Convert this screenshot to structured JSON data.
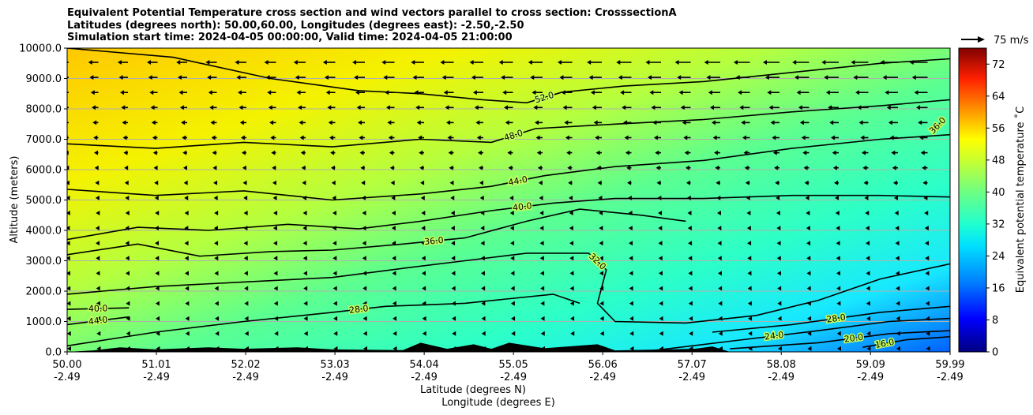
{
  "chart_data": {
    "type": "heatmap",
    "title_lines": [
      "Equivalent Potential Temperature cross section and wind vectors parallel to cross section: CrosssectionA",
      "Latitudes (degrees north): 50.00,60.00, Longitudes (degrees east): -2.50,-2.50",
      "Simulation start time: 2024-04-05 00:00:00, Valid time: 2024-04-05 21:00:00"
    ],
    "ylabel": "Altitude (meters)",
    "xlabel_1": "Latitude (degrees N)",
    "xlabel_2": "Longitude (degrees E)",
    "ylim": [
      0,
      10000
    ],
    "y_ticks": [
      {
        "v": 0,
        "label": "0.0"
      },
      {
        "v": 1000,
        "label": "1000.0"
      },
      {
        "v": 2000,
        "label": "2000.0"
      },
      {
        "v": 3000,
        "label": "3000.0"
      },
      {
        "v": 4000,
        "label": "4000.0"
      },
      {
        "v": 5000,
        "label": "5000.0"
      },
      {
        "v": 6000,
        "label": "6000.0"
      },
      {
        "v": 7000,
        "label": "7000.0"
      },
      {
        "v": 8000,
        "label": "8000.0"
      },
      {
        "v": 9000,
        "label": "9000.0"
      },
      {
        "v": 10000,
        "label": "10000.0"
      }
    ],
    "xlim": [
      50.0,
      59.99
    ],
    "x_ticks": [
      {
        "v": 50.0,
        "lat": "50.00",
        "lon": "-2.49"
      },
      {
        "v": 51.01,
        "lat": "51.01",
        "lon": "-2.49"
      },
      {
        "v": 52.02,
        "lat": "52.02",
        "lon": "-2.49"
      },
      {
        "v": 53.03,
        "lat": "53.03",
        "lon": "-2.49"
      },
      {
        "v": 54.04,
        "lat": "54.04",
        "lon": "-2.49"
      },
      {
        "v": 55.05,
        "lat": "55.05",
        "lon": "-2.49"
      },
      {
        "v": 56.06,
        "lat": "56.06",
        "lon": "-2.49"
      },
      {
        "v": 57.07,
        "lat": "57.07",
        "lon": "-2.49"
      },
      {
        "v": 58.08,
        "lat": "58.08",
        "lon": "-2.49"
      },
      {
        "v": 59.09,
        "lat": "59.09",
        "lon": "-2.49"
      },
      {
        "v": 59.99,
        "lat": "59.99",
        "lon": "-2.49"
      }
    ],
    "colorbar": {
      "label": "Equivalent potential temperature ˚C",
      "min": 0,
      "max": 76,
      "ticks": [
        0,
        8,
        16,
        24,
        32,
        40,
        48,
        56,
        64,
        72
      ]
    },
    "quiver_key": {
      "label": "75 m/s",
      "value": 75
    },
    "contours": [
      {
        "label": "52.0",
        "points": [
          [
            50.0,
            10000
          ],
          [
            51.2,
            9700
          ],
          [
            52.3,
            9000
          ],
          [
            53.3,
            8600
          ],
          [
            54.0,
            8500
          ],
          [
            54.7,
            8300
          ],
          [
            55.2,
            8200
          ],
          [
            55.6,
            8550
          ],
          [
            56.3,
            8750
          ],
          [
            57.2,
            8900
          ],
          [
            58.2,
            9200
          ],
          [
            59.2,
            9500
          ],
          [
            59.99,
            9650
          ]
        ]
      },
      {
        "label": "48.0",
        "points": [
          [
            50.0,
            6850
          ],
          [
            51.0,
            6700
          ],
          [
            52.0,
            6900
          ],
          [
            53.0,
            6750
          ],
          [
            54.0,
            7000
          ],
          [
            54.8,
            6900
          ],
          [
            55.3,
            7350
          ],
          [
            56.2,
            7500
          ],
          [
            57.2,
            7650
          ],
          [
            58.2,
            7900
          ],
          [
            59.2,
            8100
          ],
          [
            59.99,
            8300
          ]
        ]
      },
      {
        "label": "44.0",
        "points": [
          [
            50.0,
            5350
          ],
          [
            51.0,
            5150
          ],
          [
            52.0,
            5300
          ],
          [
            53.0,
            5000
          ],
          [
            54.0,
            5200
          ],
          [
            54.8,
            5450
          ],
          [
            55.4,
            5800
          ],
          [
            56.2,
            6100
          ],
          [
            57.2,
            6300
          ],
          [
            58.2,
            6700
          ],
          [
            59.2,
            7000
          ],
          [
            59.99,
            7150
          ]
        ]
      },
      {
        "label": "40.0",
        "points": [
          [
            50.0,
            3700
          ],
          [
            50.8,
            4100
          ],
          [
            51.6,
            4000
          ],
          [
            52.5,
            4200
          ],
          [
            53.3,
            4050
          ],
          [
            54.0,
            4300
          ],
          [
            54.8,
            4650
          ],
          [
            55.5,
            4900
          ],
          [
            56.2,
            5050
          ],
          [
            57.2,
            5050
          ],
          [
            58.2,
            5150
          ],
          [
            59.2,
            5150
          ],
          [
            59.99,
            5100
          ]
        ]
      },
      {
        "label": "36.0",
        "points": [
          [
            50.0,
            3200
          ],
          [
            50.8,
            3550
          ],
          [
            51.5,
            3150
          ],
          [
            52.3,
            3300
          ],
          [
            53.0,
            3350
          ],
          [
            53.8,
            3550
          ],
          [
            54.5,
            3750
          ],
          [
            55.2,
            4300
          ],
          [
            55.8,
            4700
          ],
          [
            56.5,
            4500
          ],
          [
            57.0,
            4300
          ]
        ]
      },
      {
        "label": "32.0",
        "points": [
          [
            50.0,
            1900
          ],
          [
            51.0,
            2150
          ],
          [
            52.0,
            2300
          ],
          [
            53.0,
            2450
          ],
          [
            53.8,
            2750
          ],
          [
            54.5,
            3000
          ],
          [
            55.2,
            3250
          ],
          [
            55.9,
            3250
          ],
          [
            56.1,
            2700
          ],
          [
            56.0,
            1600
          ],
          [
            56.2,
            1000
          ],
          [
            57.0,
            950
          ],
          [
            57.8,
            1200
          ],
          [
            58.5,
            1700
          ],
          [
            59.2,
            2400
          ],
          [
            59.99,
            2900
          ]
        ]
      },
      {
        "label": "40.0",
        "points": [
          [
            50.0,
            1400
          ],
          [
            50.7,
            1450
          ]
        ]
      },
      {
        "label": "44.0",
        "points": [
          [
            50.0,
            900
          ],
          [
            50.7,
            1150
          ]
        ]
      },
      {
        "label": "28.0",
        "points": [
          [
            50.0,
            200
          ],
          [
            51.0,
            650
          ],
          [
            52.0,
            1000
          ],
          [
            53.0,
            1300
          ],
          [
            53.6,
            1500
          ],
          [
            54.5,
            1600
          ],
          [
            55.5,
            1900
          ],
          [
            55.8,
            1600
          ]
        ]
      },
      {
        "label": "28.0",
        "points": [
          [
            57.3,
            650
          ],
          [
            58.2,
            900
          ],
          [
            59.2,
            1300
          ],
          [
            59.99,
            1500
          ]
        ]
      },
      {
        "label": "24.0",
        "points": [
          [
            56.5,
            0
          ],
          [
            57.5,
            350
          ],
          [
            58.5,
            700
          ],
          [
            59.3,
            1000
          ],
          [
            59.99,
            1100
          ]
        ]
      },
      {
        "label": "20.0",
        "points": [
          [
            57.5,
            100
          ],
          [
            58.5,
            300
          ],
          [
            59.3,
            600
          ],
          [
            59.99,
            700
          ]
        ]
      },
      {
        "label": "16.0",
        "points": [
          [
            59.0,
            150
          ],
          [
            59.5,
            400
          ],
          [
            59.99,
            500
          ]
        ]
      },
      {
        "label": "36.0",
        "points": [
          [
            59.8,
            7300
          ],
          [
            59.9,
            7600
          ]
        ]
      }
    ],
    "terrain": [
      [
        50.0,
        0
      ],
      [
        50.3,
        50
      ],
      [
        50.6,
        150
      ],
      [
        51.0,
        80
      ],
      [
        51.6,
        150
      ],
      [
        52.0,
        100
      ],
      [
        52.6,
        150
      ],
      [
        53.0,
        80
      ],
      [
        53.8,
        60
      ],
      [
        54.0,
        300
      ],
      [
        54.3,
        100
      ],
      [
        54.6,
        250
      ],
      [
        54.8,
        100
      ],
      [
        55.0,
        300
      ],
      [
        55.4,
        120
      ],
      [
        56.0,
        250
      ],
      [
        56.2,
        50
      ],
      [
        57.1,
        100
      ],
      [
        57.3,
        180
      ],
      [
        57.5,
        0
      ]
    ]
  }
}
